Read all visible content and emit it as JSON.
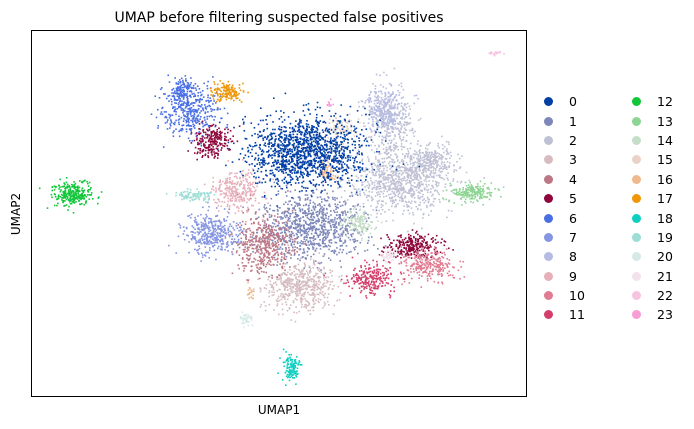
{
  "chart_data": {
    "type": "scatter",
    "title": "UMAP before filtering suspected false positives",
    "xlabel": "UMAP1",
    "ylabel": "UMAP2",
    "xticks": [],
    "yticks": [],
    "grid": false,
    "legend_position": "right",
    "legend_columns": 2,
    "series": [
      {
        "name": "0",
        "color": "#023fa5"
      },
      {
        "name": "1",
        "color": "#7d87b9"
      },
      {
        "name": "2",
        "color": "#bec1d4"
      },
      {
        "name": "3",
        "color": "#d6bcc0"
      },
      {
        "name": "4",
        "color": "#bb7784"
      },
      {
        "name": "5",
        "color": "#8e063b"
      },
      {
        "name": "6",
        "color": "#4a6fe3"
      },
      {
        "name": "7",
        "color": "#8595e1"
      },
      {
        "name": "8",
        "color": "#b5bbe3"
      },
      {
        "name": "9",
        "color": "#e6afb9"
      },
      {
        "name": "10",
        "color": "#e07b91"
      },
      {
        "name": "11",
        "color": "#d33f6a"
      },
      {
        "name": "12",
        "color": "#11c638"
      },
      {
        "name": "13",
        "color": "#8dd593"
      },
      {
        "name": "14",
        "color": "#c6dec7"
      },
      {
        "name": "15",
        "color": "#ead3c6"
      },
      {
        "name": "16",
        "color": "#f0b98d"
      },
      {
        "name": "17",
        "color": "#ef9708"
      },
      {
        "name": "18",
        "color": "#0fcfc0"
      },
      {
        "name": "19",
        "color": "#9cded6"
      },
      {
        "name": "20",
        "color": "#d5eae7"
      },
      {
        "name": "21",
        "color": "#f3e1eb"
      },
      {
        "name": "22",
        "color": "#f6c4e1"
      },
      {
        "name": "23",
        "color": "#f79cd4"
      }
    ]
  }
}
